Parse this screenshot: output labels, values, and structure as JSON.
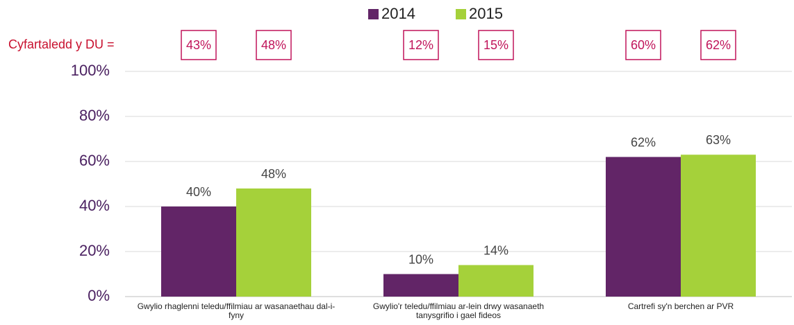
{
  "chart_data": {
    "type": "bar",
    "categories": [
      "Gwylio rhaglenni teledu/ffilmiau ar wasanaethau dal-i-fyny",
      "Gwylio'r teledu/ffilmiau ar-lein drwy wasanaeth tanysgrifio i gael fideos",
      "Cartrefi sy'n berchen ar PVR"
    ],
    "series": [
      {
        "name": "2014",
        "color": "#622567",
        "values": [
          40,
          10,
          62
        ],
        "value_labels": [
          "40%",
          "10%",
          "62%"
        ],
        "uk_average": [
          43,
          12,
          60
        ],
        "uk_average_labels": [
          "43%",
          "12%",
          "60%"
        ]
      },
      {
        "name": "2015",
        "color": "#a5d13a",
        "values": [
          48,
          14,
          63
        ],
        "value_labels": [
          "48%",
          "14%",
          "63%"
        ],
        "uk_average": [
          48,
          15,
          62
        ],
        "uk_average_labels": [
          "48%",
          "15%",
          "62%"
        ]
      }
    ],
    "uk_average_title": "Cyfartaledd y DU =",
    "ylim": [
      0,
      100
    ],
    "yticks": [
      {
        "value": 0,
        "label": "0%"
      },
      {
        "value": 20,
        "label": "20%"
      },
      {
        "value": 40,
        "label": "40%"
      },
      {
        "value": 60,
        "label": "60%"
      },
      {
        "value": 80,
        "label": "80%"
      },
      {
        "value": 100,
        "label": "100%"
      }
    ],
    "grid": true,
    "legend": "top"
  }
}
